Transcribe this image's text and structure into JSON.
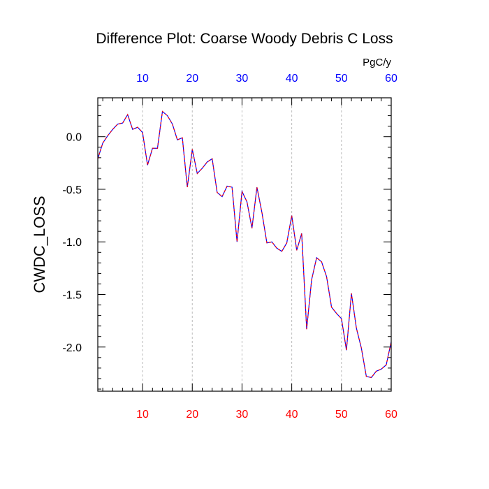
{
  "chart_data": {
    "type": "line",
    "title": "Difference Plot: Coarse Woody Debris C Loss",
    "ylabel": "CWDC_LOSS",
    "top_axis_units": "PgC/y",
    "xlim": [
      1,
      60
    ],
    "ylim": [
      -2.42,
      0.37
    ],
    "x_ticks": [
      10,
      20,
      30,
      40,
      50,
      60
    ],
    "x_tick_labels": [
      "10",
      "20",
      "30",
      "40",
      "50",
      "60"
    ],
    "y_ticks": [
      0.0,
      -0.5,
      -1.0,
      -1.5,
      -2.0
    ],
    "y_tick_labels": [
      "0.0",
      "-0.5",
      "-1.0",
      "-1.5",
      "-2.0"
    ],
    "grid": "vertical dashed at major x ticks",
    "colors": {
      "line_a": "#0000ff",
      "line_b": "#ff0000",
      "bottom_tick_labels": "#ff0000",
      "top_tick_labels": "#0000ff",
      "grid": "#bbbbbb",
      "axes": "#000000"
    },
    "series": [
      {
        "x": [
          1,
          2,
          3,
          4,
          5,
          6,
          7,
          8,
          9,
          10,
          11,
          12,
          13,
          14,
          15,
          16,
          17,
          18,
          19,
          20,
          21,
          22,
          23,
          24,
          25,
          26,
          27,
          28,
          29,
          30,
          31,
          32,
          33,
          34,
          35,
          36,
          37,
          38,
          39,
          40,
          41,
          42,
          43,
          44,
          45,
          46,
          47,
          48,
          49,
          50,
          51,
          52,
          53,
          54,
          55,
          56,
          57,
          58,
          59,
          60
        ],
        "values": [
          -0.21,
          -0.06,
          0.01,
          0.07,
          0.12,
          0.13,
          0.21,
          0.07,
          0.09,
          0.04,
          -0.27,
          -0.11,
          -0.11,
          0.24,
          0.2,
          0.12,
          -0.03,
          -0.01,
          -0.48,
          -0.12,
          -0.35,
          -0.3,
          -0.24,
          -0.21,
          -0.53,
          -0.57,
          -0.47,
          -0.48,
          -1.0,
          -0.52,
          -0.62,
          -0.87,
          -0.48,
          -0.72,
          -1.01,
          -1.0,
          -1.06,
          -1.09,
          -1.01,
          -0.75,
          -1.08,
          -0.92,
          -1.83,
          -1.36,
          -1.15,
          -1.19,
          -1.33,
          -1.62,
          -1.68,
          -1.73,
          -2.03,
          -1.49,
          -1.82,
          -2.01,
          -2.28,
          -2.29,
          -2.23,
          -2.21,
          -2.17,
          -1.95
        ]
      }
    ]
  }
}
